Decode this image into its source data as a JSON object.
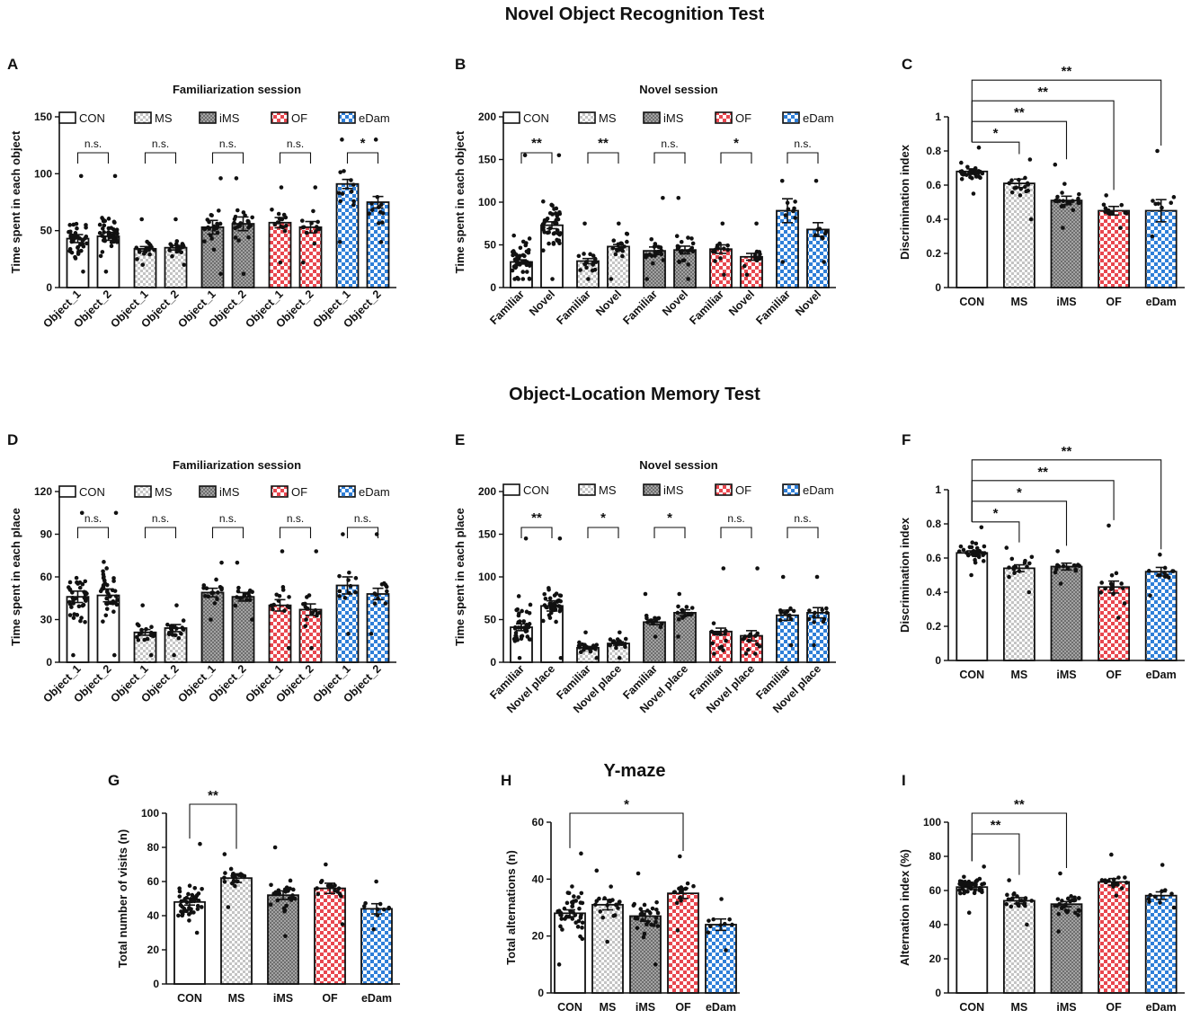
{
  "section_titles": {
    "nor": "Novel Object Recognition Test",
    "olm": "Object-Location Memory Test",
    "ymaze": "Y-maze"
  },
  "colors": {
    "CON": "#ffffff",
    "MS": "#c8c8c8",
    "iMS": "#7a7a7a",
    "OF": "#e8474f",
    "eDam": "#2f7fd8"
  },
  "chart_data": [
    {
      "panel": "A",
      "type": "bar",
      "title": "Familiarization session",
      "ylabel": "Time spent in each object",
      "ylim": [
        0,
        150
      ],
      "yticks": [
        0,
        50,
        100,
        150
      ],
      "legend": [
        "CON",
        "MS",
        "iMS",
        "OF",
        "eDam"
      ],
      "groups": [
        {
          "name": "CON",
          "labels": [
            "Object_1",
            "Object_2"
          ],
          "values": [
            43,
            45
          ],
          "sem": [
            3.5,
            3.5
          ],
          "n": 45,
          "spread": [
            14,
            98
          ]
        },
        {
          "name": "MS",
          "labels": [
            "Object_1",
            "Object_2"
          ],
          "values": [
            34,
            35
          ],
          "sem": [
            2,
            2
          ],
          "n": 18,
          "spread": [
            20,
            60
          ]
        },
        {
          "name": "iMS",
          "labels": [
            "Object_1",
            "Object_2"
          ],
          "values": [
            53,
            56
          ],
          "sem": [
            6,
            6
          ],
          "n": 22,
          "spread": [
            12,
            96
          ]
        },
        {
          "name": "OF",
          "labels": [
            "Object_1",
            "Object_2"
          ],
          "values": [
            57,
            53
          ],
          "sem": [
            4.5,
            5
          ],
          "n": 14,
          "spread": [
            22,
            88
          ]
        },
        {
          "name": "eDam",
          "labels": [
            "Object_1",
            "Object_2"
          ],
          "values": [
            91,
            75
          ],
          "sem": [
            4,
            5
          ],
          "n": 12,
          "spread": [
            40,
            130
          ]
        }
      ],
      "within_sig": [
        "n.s.",
        "n.s.",
        "n.s.",
        "n.s.",
        "*"
      ]
    },
    {
      "panel": "B",
      "type": "bar",
      "title": "Novel session",
      "ylabel": "Time spent in each object",
      "ylim": [
        0,
        200
      ],
      "yticks": [
        0,
        50,
        100,
        150,
        200
      ],
      "legend": [
        "CON",
        "MS",
        "iMS",
        "OF",
        "eDam"
      ],
      "groups": [
        {
          "name": "CON",
          "labels": [
            "Familiar",
            "Novel"
          ],
          "values": [
            30,
            73
          ],
          "sem": [
            2.5,
            4
          ],
          "n": 45,
          "spread": [
            10,
            155
          ]
        },
        {
          "name": "MS",
          "labels": [
            "Familiar",
            "Novel"
          ],
          "values": [
            31,
            48
          ],
          "sem": [
            3,
            2.5
          ],
          "n": 18,
          "spread": [
            10,
            75
          ]
        },
        {
          "name": "iMS",
          "labels": [
            "Familiar",
            "Novel"
          ],
          "values": [
            43,
            44
          ],
          "sem": [
            4.5,
            4.5
          ],
          "n": 22,
          "spread": [
            10,
            105
          ]
        },
        {
          "name": "OF",
          "labels": [
            "Familiar",
            "Novel"
          ],
          "values": [
            45,
            36
          ],
          "sem": [
            5,
            4
          ],
          "n": 14,
          "spread": [
            15,
            75
          ]
        },
        {
          "name": "eDam",
          "labels": [
            "Familiar",
            "Novel"
          ],
          "values": [
            90,
            68
          ],
          "sem": [
            14,
            8
          ],
          "n": 9,
          "spread": [
            30,
            125
          ]
        }
      ],
      "within_sig": [
        "**",
        "**",
        "n.s.",
        "*",
        "n.s."
      ]
    },
    {
      "panel": "C",
      "type": "bar",
      "ylabel": "Discrimination index",
      "ylim": [
        0,
        1.0
      ],
      "yticks": [
        0.0,
        0.2,
        0.4,
        0.6,
        0.8,
        1.0
      ],
      "categories": [
        "CON",
        "MS",
        "iMS",
        "OF",
        "eDam"
      ],
      "values": [
        0.68,
        0.61,
        0.51,
        0.45,
        0.45
      ],
      "sem": [
        0.015,
        0.025,
        0.025,
        0.025,
        0.065
      ],
      "n": [
        30,
        16,
        20,
        12,
        8
      ],
      "spread": [
        [
          0.55,
          0.82
        ],
        [
          0.4,
          0.75
        ],
        [
          0.35,
          0.72
        ],
        [
          0.35,
          0.54
        ],
        [
          0.3,
          0.8
        ]
      ],
      "comparisons": [
        {
          "to": "MS",
          "sig": "*"
        },
        {
          "to": "iMS",
          "sig": "**"
        },
        {
          "to": "OF",
          "sig": "**"
        },
        {
          "to": "eDam",
          "sig": "**"
        }
      ]
    },
    {
      "panel": "D",
      "type": "bar",
      "title": "Familiarization session",
      "ylabel": "Time spent in each place",
      "ylim": [
        0,
        120
      ],
      "yticks": [
        0,
        30,
        60,
        90,
        120
      ],
      "legend": [
        "CON",
        "MS",
        "iMS",
        "OF",
        "eDam"
      ],
      "groups": [
        {
          "name": "CON",
          "labels": [
            "Object_1",
            "Object_2"
          ],
          "values": [
            46,
            47
          ],
          "sem": [
            4,
            4.5
          ],
          "n": 40,
          "spread": [
            5,
            105
          ]
        },
        {
          "name": "MS",
          "labels": [
            "Object_1",
            "Object_2"
          ],
          "values": [
            21,
            24
          ],
          "sem": [
            2,
            2.5
          ],
          "n": 18,
          "spread": [
            5,
            40
          ]
        },
        {
          "name": "iMS",
          "labels": [
            "Object_1",
            "Object_2"
          ],
          "values": [
            49,
            46
          ],
          "sem": [
            3,
            3
          ],
          "n": 16,
          "spread": [
            30,
            70
          ]
        },
        {
          "name": "OF",
          "labels": [
            "Object_1",
            "Object_2"
          ],
          "values": [
            40,
            37
          ],
          "sem": [
            4,
            4
          ],
          "n": 15,
          "spread": [
            10,
            78
          ]
        },
        {
          "name": "eDam",
          "labels": [
            "Object_1",
            "Object_2"
          ],
          "values": [
            54,
            48
          ],
          "sem": [
            6,
            4
          ],
          "n": 12,
          "spread": [
            20,
            90
          ]
        }
      ],
      "within_sig": [
        "n.s.",
        "n.s.",
        "n.s.",
        "n.s.",
        "n.s."
      ]
    },
    {
      "panel": "E",
      "type": "bar",
      "title": "Novel session",
      "ylabel": "Time spent in each place",
      "ylim": [
        0,
        200
      ],
      "yticks": [
        0,
        50,
        100,
        150,
        200
      ],
      "legend": [
        "CON",
        "MS",
        "iMS",
        "OF",
        "eDam"
      ],
      "groups": [
        {
          "name": "CON",
          "labels": [
            "Familiar",
            "Novel place"
          ],
          "values": [
            41,
            66
          ],
          "sem": [
            4,
            6
          ],
          "n": 40,
          "spread": [
            5,
            145
          ]
        },
        {
          "name": "MS",
          "labels": [
            "Familiar",
            "Novel place"
          ],
          "values": [
            17,
            22
          ],
          "sem": [
            1.5,
            2
          ],
          "n": 18,
          "spread": [
            5,
            35
          ]
        },
        {
          "name": "iMS",
          "labels": [
            "Familiar",
            "Novel place"
          ],
          "values": [
            47,
            58
          ],
          "sem": [
            3,
            3.5
          ],
          "n": 14,
          "spread": [
            30,
            80
          ]
        },
        {
          "name": "OF",
          "labels": [
            "Familiar",
            "Novel place"
          ],
          "values": [
            36,
            31
          ],
          "sem": [
            4,
            6
          ],
          "n": 14,
          "spread": [
            10,
            110
          ]
        },
        {
          "name": "eDam",
          "labels": [
            "Familiar",
            "Novel place"
          ],
          "values": [
            55,
            58
          ],
          "sem": [
            6,
            6
          ],
          "n": 12,
          "spread": [
            20,
            100
          ]
        }
      ],
      "within_sig": [
        "**",
        "*",
        "*",
        "n.s.",
        "n.s."
      ]
    },
    {
      "panel": "F",
      "type": "bar",
      "ylabel": "Discrimination index",
      "ylim": [
        0,
        1.0
      ],
      "yticks": [
        0.0,
        0.2,
        0.4,
        0.6,
        0.8,
        1.0
      ],
      "categories": [
        "CON",
        "MS",
        "iMS",
        "OF",
        "eDam"
      ],
      "values": [
        0.63,
        0.54,
        0.55,
        0.43,
        0.52
      ],
      "sem": [
        0.012,
        0.02,
        0.02,
        0.035,
        0.025
      ],
      "n": [
        30,
        16,
        14,
        14,
        12
      ],
      "spread": [
        [
          0.5,
          0.78
        ],
        [
          0.4,
          0.66
        ],
        [
          0.45,
          0.64
        ],
        [
          0.25,
          0.79
        ],
        [
          0.38,
          0.62
        ]
      ],
      "comparisons": [
        {
          "to": "MS",
          "sig": "*"
        },
        {
          "to": "iMS",
          "sig": "*"
        },
        {
          "to": "OF",
          "sig": "**"
        },
        {
          "to": "eDam",
          "sig": "**"
        }
      ]
    },
    {
      "panel": "G",
      "type": "bar",
      "ylabel": "Total number of visits (n)",
      "ylim": [
        0,
        100
      ],
      "yticks": [
        0,
        20,
        40,
        60,
        80,
        100
      ],
      "categories": [
        "CON",
        "MS",
        "iMS",
        "OF",
        "eDam"
      ],
      "values": [
        48,
        62,
        52,
        56,
        44
      ],
      "sem": [
        1.8,
        2.5,
        2.5,
        3,
        3
      ],
      "n": [
        45,
        20,
        28,
        15,
        10
      ],
      "spread": [
        [
          30,
          82
        ],
        [
          45,
          76
        ],
        [
          28,
          80
        ],
        [
          35,
          70
        ],
        [
          32,
          60
        ]
      ],
      "comparisons": [
        {
          "to": "MS",
          "sig": "**"
        }
      ]
    },
    {
      "panel": "H",
      "type": "bar",
      "ylabel": "Total alternations (n)",
      "ylim": [
        0,
        60
      ],
      "yticks": [
        0,
        20,
        40,
        60
      ],
      "categories": [
        "CON",
        "MS",
        "iMS",
        "OF",
        "eDam"
      ],
      "values": [
        28,
        31,
        27,
        35,
        24
      ],
      "sem": [
        1.2,
        1.8,
        1.8,
        1.8,
        2
      ],
      "n": [
        45,
        20,
        28,
        15,
        10
      ],
      "spread": [
        [
          10,
          49
        ],
        [
          18,
          43
        ],
        [
          10,
          42
        ],
        [
          22,
          48
        ],
        [
          15,
          33
        ]
      ],
      "comparisons": [
        {
          "to": "OF",
          "sig": "*"
        }
      ]
    },
    {
      "panel": "I",
      "type": "bar",
      "ylabel": "Alternation index (%)",
      "ylim": [
        0,
        100
      ],
      "yticks": [
        0,
        20,
        40,
        60,
        80,
        100
      ],
      "categories": [
        "CON",
        "MS",
        "iMS",
        "OF",
        "eDam"
      ],
      "values": [
        62,
        54,
        52,
        65,
        57
      ],
      "sem": [
        1,
        1.8,
        1.5,
        2,
        2.2
      ],
      "n": [
        45,
        20,
        28,
        15,
        10
      ],
      "spread": [
        [
          47,
          74
        ],
        [
          40,
          66
        ],
        [
          36,
          70
        ],
        [
          57,
          81
        ],
        [
          50,
          75
        ]
      ],
      "comparisons": [
        {
          "to": "MS",
          "sig": "**"
        },
        {
          "to": "iMS",
          "sig": "**"
        }
      ]
    }
  ]
}
